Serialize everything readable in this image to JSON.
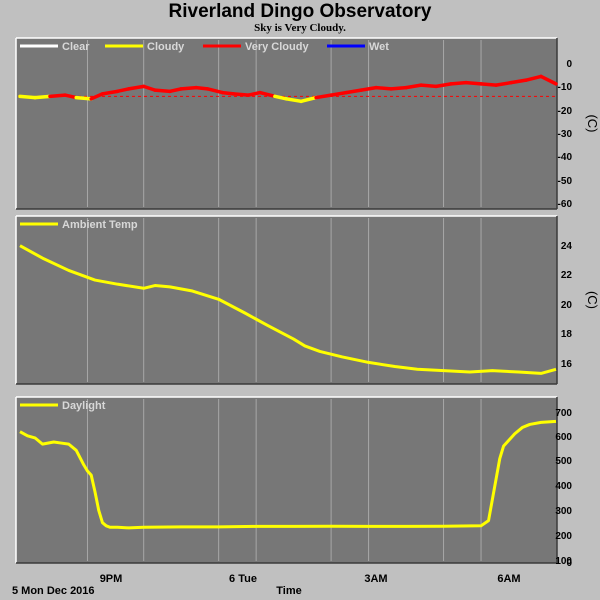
{
  "title": "Riverland Dingo Observatory",
  "subtitle": "Sky is Very Cloudy.",
  "x_axis": {
    "label": "Time",
    "start_label": "5 Mon Dec 2016",
    "ticks": [
      "9PM",
      "6 Tue",
      "3AM",
      "6AM"
    ]
  },
  "colors": {
    "background": "#c0c0c0",
    "panel": "#777777",
    "grid": "#a8a8a8",
    "clear": "#ffffff",
    "cloudy": "#ffff00",
    "very_cloudy": "#ff0000",
    "wet": "#0000ff"
  },
  "chart_data": [
    {
      "type": "line",
      "unit": "(C)",
      "legend": [
        {
          "name": "Clear",
          "color": "#ffffff"
        },
        {
          "name": "Cloudy",
          "color": "#ffff00"
        },
        {
          "name": "Very Cloudy",
          "color": "#ff0000"
        },
        {
          "name": "Wet",
          "color": "#0000ff"
        }
      ],
      "ylim": [
        -60,
        5
      ],
      "yticks": [
        "0",
        "-10",
        "-20",
        "-30",
        "-40",
        "-50",
        "-60"
      ],
      "threshold": -16,
      "series": [
        {
          "name": "Sky Temp",
          "x_hours": [
            17.7,
            18.1,
            18.5,
            18.9,
            19.2,
            19.6,
            19.9,
            20.3,
            20.6,
            21.0,
            21.3,
            21.7,
            22.0,
            22.4,
            22.7,
            23.1,
            23.4,
            23.8,
            24.1,
            24.5,
            24.8,
            25.2,
            25.6,
            26.0,
            26.4,
            26.8,
            27.2,
            27.6,
            28.0,
            28.4,
            28.8,
            29.2,
            29.6,
            30.0,
            30.4,
            30.8,
            31.2,
            31.6,
            32.0
          ],
          "values": [
            -16,
            -16.5,
            -16,
            -15.5,
            -16.5,
            -17,
            -15,
            -14,
            -13,
            -12,
            -13.5,
            -14,
            -13,
            -12.5,
            -13,
            -14.5,
            -15,
            -15.5,
            -14.5,
            -16,
            -17,
            -18,
            -16.5,
            -15.5,
            -14.5,
            -13.5,
            -12.5,
            -13,
            -12.5,
            -11.5,
            -12,
            -11,
            -10.5,
            -11,
            -11.5,
            -10.5,
            -9.5,
            -8,
            -11
          ],
          "color_by_value": [
            {
              "below": -16,
              "color": "#ffff00"
            },
            {
              "below": 100,
              "color": "#ff0000"
            }
          ]
        }
      ]
    },
    {
      "type": "line",
      "unit": "(C)",
      "legend": [
        {
          "name": "Ambient Temp",
          "color": "#ffff00"
        }
      ],
      "ylim": [
        14.5,
        25.5
      ],
      "yticks": [
        "24",
        "22",
        "20",
        "18",
        "16"
      ],
      "series": [
        {
          "name": "Ambient Temp",
          "color": "#ffff00",
          "x_hours": [
            17.7,
            18.3,
            19.0,
            19.7,
            20.3,
            21.0,
            21.3,
            21.7,
            22.3,
            23.0,
            23.7,
            24.3,
            25.0,
            25.3,
            25.7,
            26.3,
            27.0,
            27.7,
            28.3,
            29.0,
            29.7,
            30.3,
            31.0,
            31.6,
            32.0
          ],
          "values": [
            24.5,
            23.6,
            22.7,
            22.0,
            21.7,
            21.4,
            21.6,
            21.5,
            21.2,
            20.6,
            19.6,
            18.7,
            17.7,
            17.2,
            16.8,
            16.4,
            16.0,
            15.7,
            15.5,
            15.4,
            15.3,
            15.4,
            15.3,
            15.2,
            15.5
          ]
        }
      ]
    },
    {
      "type": "line",
      "unit": "",
      "legend": [
        {
          "name": "Daylight",
          "color": "#ffff00"
        }
      ],
      "ylim": [
        0,
        730
      ],
      "yticks": [
        "700",
        "600",
        "500",
        "400",
        "300",
        "200",
        "100",
        "0"
      ],
      "series": [
        {
          "name": "Daylight",
          "color": "#ffff00",
          "x_hours": [
            17.7,
            17.9,
            18.1,
            18.3,
            18.6,
            18.8,
            19.0,
            19.2,
            19.4,
            19.5,
            19.6,
            19.7,
            19.8,
            19.9,
            20.0,
            20.1,
            20.3,
            20.6,
            21.0,
            22.0,
            23.0,
            24.0,
            25.0,
            26.0,
            27.0,
            28.0,
            29.0,
            30.0,
            30.2,
            30.3,
            30.4,
            30.5,
            30.6,
            30.7,
            30.9,
            31.1,
            31.3,
            31.6,
            32.0
          ],
          "values": [
            630,
            610,
            600,
            570,
            580,
            575,
            570,
            540,
            470,
            440,
            420,
            340,
            250,
            190,
            175,
            168,
            168,
            165,
            168,
            170,
            170,
            172,
            172,
            173,
            172,
            172,
            173,
            175,
            200,
            300,
            400,
            500,
            560,
            580,
            620,
            650,
            665,
            675,
            680
          ]
        }
      ]
    }
  ]
}
